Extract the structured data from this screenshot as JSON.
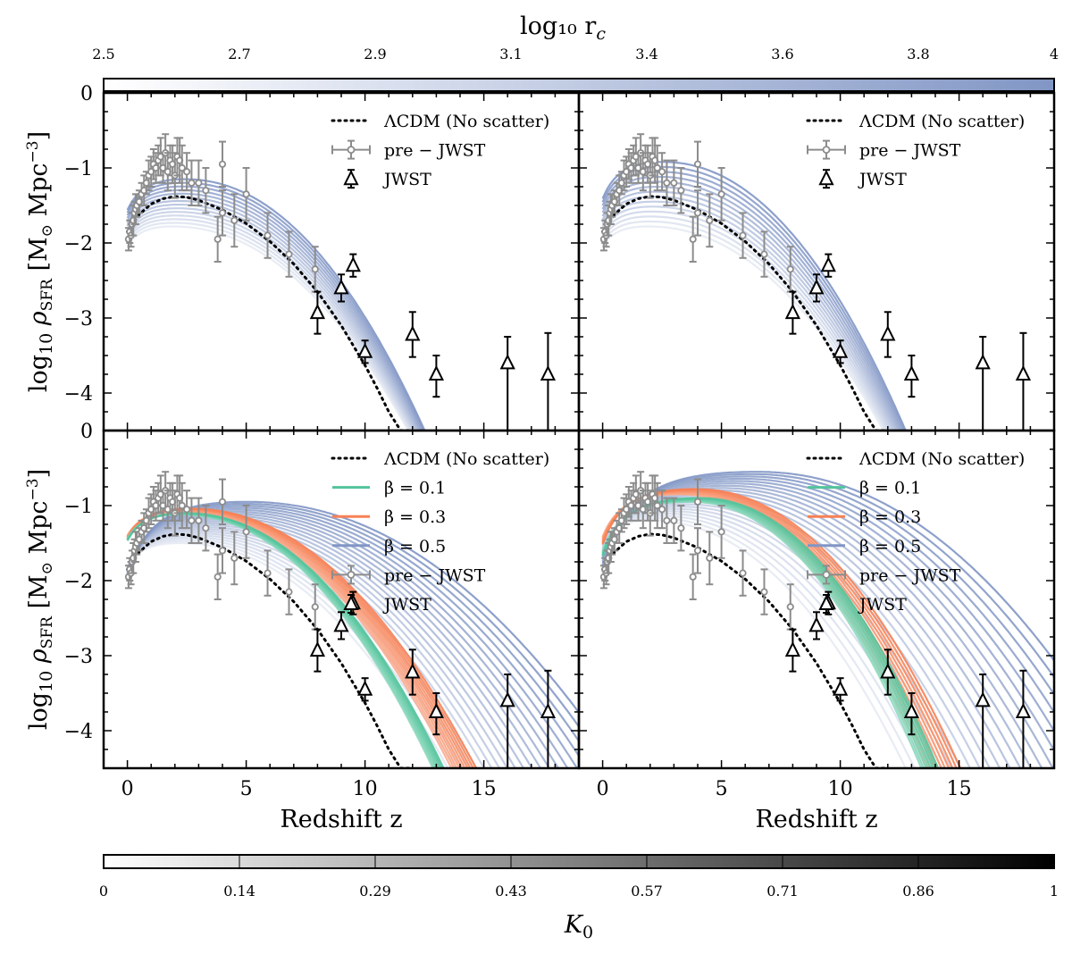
{
  "colorbar_top": {
    "title": "log₁₀ r",
    "title_sub": "c",
    "ticks": [
      "2.5",
      "2.7",
      "2.9",
      "3.1",
      "3.4",
      "3.6",
      "3.8",
      "4"
    ],
    "color_start": "#ffffff",
    "color_end": "#8196c5"
  },
  "colorbar_bottom": {
    "title": "K",
    "title_sub": "0",
    "ticks": [
      "0",
      "0.14",
      "0.29",
      "0.43",
      "0.57",
      "0.71",
      "0.86",
      "1"
    ],
    "color_start": "#ffffff",
    "color_end": "#000000"
  },
  "colors": {
    "lcdm": "#000000",
    "prejwst": "#8c8c8c",
    "jwst": "#000000",
    "beta_0.1": "#53c49c",
    "beta_0.3": "#f78155",
    "beta_0.5": "#8196c5"
  },
  "legend_labels": {
    "lcdm": "ΛCDM (No scatter)",
    "prejwst": "pre − JWST",
    "jwst": "JWST",
    "beta_0.1": "β = 0.1",
    "beta_0.3": "β = 0.3",
    "beta_0.5": "β = 0.5"
  },
  "chart_data": {
    "type": "line",
    "layout": "2x2 panels sharing axes",
    "xlabel": "Redshift z",
    "ylabel": "log₁₀ ρSFR [M⊙ Mpc⁻³]",
    "xlim": [
      -1,
      19
    ],
    "ylim": [
      -4.5,
      0
    ],
    "xticks": [
      0,
      5,
      10,
      15
    ],
    "yticks": [
      -4,
      -3,
      -2,
      -1,
      0
    ],
    "lcdm_curve": {
      "name": "ΛCDM (No scatter)",
      "style": "dotted",
      "x": [
        0,
        0.5,
        1,
        1.5,
        2,
        2.5,
        3,
        4,
        5,
        6,
        7,
        8,
        9,
        10,
        10.5,
        11,
        11.5,
        12
      ],
      "y": [
        -1.85,
        -1.62,
        -1.48,
        -1.41,
        -1.38,
        -1.39,
        -1.43,
        -1.56,
        -1.74,
        -1.98,
        -2.28,
        -2.65,
        -3.1,
        -3.63,
        -3.93,
        -4.25,
        -4.5,
        -4.5
      ]
    },
    "prejwst_data": {
      "name": "pre − JWST",
      "x": [
        0.05,
        0.1,
        0.15,
        0.2,
        0.25,
        0.3,
        0.35,
        0.4,
        0.5,
        0.6,
        0.7,
        0.8,
        0.9,
        1.0,
        1.1,
        1.2,
        1.3,
        1.4,
        1.5,
        1.6,
        1.7,
        1.8,
        1.9,
        2.0,
        2.1,
        2.2,
        2.3,
        2.5,
        2.7,
        3.0,
        3.3,
        3.8,
        4.0,
        4.0,
        4.5,
        5.0,
        5.9,
        6.8,
        7.9
      ],
      "y": [
        -1.95,
        -1.85,
        -1.9,
        -1.75,
        -1.7,
        -1.6,
        -1.55,
        -1.5,
        -1.45,
        -1.35,
        -1.3,
        -1.2,
        -1.1,
        -1.05,
        -0.95,
        -1.0,
        -0.9,
        -0.85,
        -1.0,
        -0.8,
        -1.05,
        -0.9,
        -0.95,
        -1.1,
        -0.85,
        -0.9,
        -1.0,
        -1.05,
        -1.2,
        -1.2,
        -1.3,
        -1.95,
        -0.95,
        -1.6,
        -1.7,
        -1.35,
        -1.9,
        -2.15,
        -2.35
      ],
      "err": [
        0.15,
        0.15,
        0.15,
        0.15,
        0.2,
        0.15,
        0.2,
        0.15,
        0.15,
        0.15,
        0.2,
        0.15,
        0.2,
        0.2,
        0.2,
        0.2,
        0.2,
        0.25,
        0.2,
        0.25,
        0.25,
        0.2,
        0.25,
        0.3,
        0.25,
        0.3,
        0.3,
        0.25,
        0.3,
        0.3,
        0.3,
        0.3,
        0.3,
        0.3,
        0.35,
        0.35,
        0.3,
        0.3,
        0.3
      ]
    },
    "jwst_data": {
      "name": "JWST",
      "x": [
        8.0,
        9.0,
        9.5,
        10.0,
        12.0,
        13.0,
        16.0,
        17.7
      ],
      "y": [
        -2.93,
        -2.6,
        -2.3,
        -3.45,
        -3.22,
        -3.75,
        -3.6,
        -3.75
      ],
      "err_lo": [
        0.28,
        0.18,
        0.15,
        0.15,
        0.3,
        0.3,
        1.5,
        1.5
      ],
      "err_hi": [
        0.28,
        0.18,
        0.15,
        0.15,
        0.3,
        0.25,
        0.35,
        0.55
      ]
    },
    "panels": [
      {
        "position": "top-left",
        "legend": [
          "lcdm",
          "prejwst",
          "jwst"
        ],
        "model_families": [
          {
            "color": "beta_0.5",
            "count": 14,
            "peak_z_range": [
              1.9,
              2.4
            ],
            "peak_y_range": [
              -1.78,
              -1.15
            ],
            "log_slope_range": [
              1.2,
              1.45
            ],
            "curvature_range": [
              0.022,
              0.026
            ],
            "fade": true
          }
        ]
      },
      {
        "position": "top-right",
        "legend": [
          "lcdm",
          "prejwst",
          "jwst"
        ],
        "model_families": [
          {
            "color": "beta_0.5",
            "count": 14,
            "peak_z_range": [
              1.9,
              2.5
            ],
            "peak_y_range": [
              -1.78,
              -0.92
            ],
            "log_slope_range": [
              1.2,
              1.65
            ],
            "curvature_range": [
              0.022,
              0.027
            ],
            "fade": true
          }
        ]
      },
      {
        "position": "bottom-left",
        "legend": [
          "lcdm",
          "beta_0.1",
          "beta_0.3",
          "beta_0.5",
          "prejwst",
          "jwst"
        ],
        "model_families": [
          {
            "color": "beta_0.5",
            "count": 22,
            "peak_z_range": [
              2.2,
              5.0
            ],
            "peak_y_range": [
              -1.5,
              -0.95
            ],
            "log_slope_range": [
              1.2,
              1.65
            ],
            "curvature_range": [
              0.0195,
              0.011
            ],
            "fade": true
          },
          {
            "color": "beta_0.3",
            "count": 10,
            "peak_z_range": [
              2.2,
              2.6
            ],
            "peak_y_range": [
              -1.08,
              -1.04
            ],
            "log_slope_range": [
              1.25,
              1.3
            ],
            "curvature_range": [
              0.0205,
              0.0185
            ],
            "fade": false
          },
          {
            "color": "beta_0.1",
            "count": 8,
            "peak_z_range": [
              2.2,
              2.4
            ],
            "peak_y_range": [
              -1.12,
              -1.1
            ],
            "log_slope_range": [
              1.25,
              1.3
            ],
            "curvature_range": [
              0.0235,
              0.0225
            ],
            "fade": false
          }
        ]
      },
      {
        "position": "bottom-right",
        "legend": [
          "lcdm",
          "beta_0.1",
          "beta_0.3",
          "beta_0.5",
          "prejwst",
          "jwst"
        ],
        "model_families": [
          {
            "color": "beta_0.5",
            "count": 22,
            "peak_z_range": [
              2.0,
              6.5
            ],
            "peak_y_range": [
              -1.2,
              -0.55
            ],
            "log_slope_range": [
              1.2,
              1.75
            ],
            "curvature_range": [
              0.0225,
              0.0125
            ],
            "fade": true
          },
          {
            "color": "beta_0.3",
            "count": 10,
            "peak_z_range": [
              3.2,
              3.9
            ],
            "peak_y_range": [
              -0.85,
              -0.78
            ],
            "log_slope_range": [
              1.45,
              1.55
            ],
            "curvature_range": [
              0.0265,
              0.0235
            ],
            "fade": false
          },
          {
            "color": "beta_0.1",
            "count": 8,
            "peak_z_range": [
              3.7,
              4.1
            ],
            "peak_y_range": [
              -0.95,
              -0.9
            ],
            "log_slope_range": [
              1.45,
              1.55
            ],
            "curvature_range": [
              0.03,
              0.0285
            ],
            "fade": false
          }
        ]
      }
    ]
  }
}
